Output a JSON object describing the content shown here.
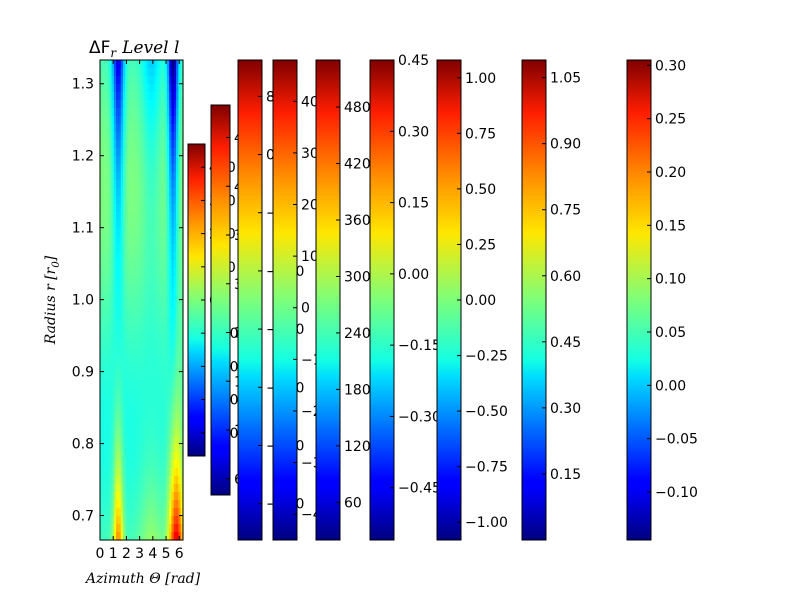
{
  "chart_data": {
    "type": "heatmap",
    "title": "ΔF",
    "title_subscript": "r",
    "title_suffix": "Level l",
    "xlabel": "Azimuth Θ [rad]",
    "ylabel": "Radius r [r",
    "ylabel_subscript": "0",
    "ylabel_suffix": "]",
    "colormap": "jet",
    "xlim": [
      0,
      6.2832
    ],
    "ylim": [
      0.666,
      1.333
    ],
    "x_ticks": [
      "0",
      "1",
      "2",
      "3",
      "4",
      "5",
      "6"
    ],
    "y_ticks": [
      "0.7",
      "0.8",
      "0.9",
      "1.0",
      "1.1",
      "1.2",
      "1.3"
    ],
    "heatmap_description_values": [
      {
        "r": 1.33,
        "level": "blue/cyan bands near x≈0.7 and x≈4.5–5.8"
      },
      {
        "r": 0.7,
        "level": "yellow-orange bands near x≈1.3 and x≈5.5–6.2"
      }
    ],
    "colorbars": [
      {
        "ticks": [
          "400",
          "300",
          "200",
          "100",
          "0",
          "−100",
          "−200",
          "−300",
          "−400"
        ],
        "vmin": -470,
        "vmax": 470
      },
      {
        "ticks": [
          "480",
          "420",
          "360",
          "300",
          "240",
          "180",
          "120",
          "60"
        ],
        "vmin": 40,
        "vmax": 520
      },
      {
        "ticks": [
          "80",
          "0",
          "−80",
          "−160",
          "−240",
          "−320",
          "−400",
          "−480"
        ],
        "vmin": -530,
        "vmax": 130
      },
      {
        "ticks": [
          "400",
          "300",
          "200",
          "100",
          "0",
          "−100",
          "−200",
          "−300",
          "−400"
        ],
        "vmin": -450,
        "vmax": 480
      },
      {
        "ticks": [
          "480",
          "420",
          "360",
          "300",
          "240",
          "180",
          "120",
          "60"
        ],
        "vmin": 20,
        "vmax": 530
      },
      {
        "ticks": [
          "0.45",
          "0.30",
          "0.15",
          "0.00",
          "−0.15",
          "−0.30",
          "−0.45"
        ],
        "vmin": -0.56,
        "vmax": 0.45
      },
      {
        "ticks": [
          "1.00",
          "0.75",
          "0.50",
          "0.25",
          "0.00",
          "−0.25",
          "−0.50",
          "−0.75",
          "−1.00"
        ],
        "vmin": -1.08,
        "vmax": 1.08
      },
      {
        "ticks": [
          "1.05",
          "0.90",
          "0.75",
          "0.60",
          "0.45",
          "0.30",
          "0.15"
        ],
        "vmin": 0.0,
        "vmax": 1.09
      },
      {
        "ticks": [
          "0.30",
          "0.25",
          "0.20",
          "0.15",
          "0.10",
          "0.05",
          "0.00",
          "−0.05",
          "−0.10"
        ],
        "vmin": -0.145,
        "vmax": 0.305
      }
    ]
  }
}
